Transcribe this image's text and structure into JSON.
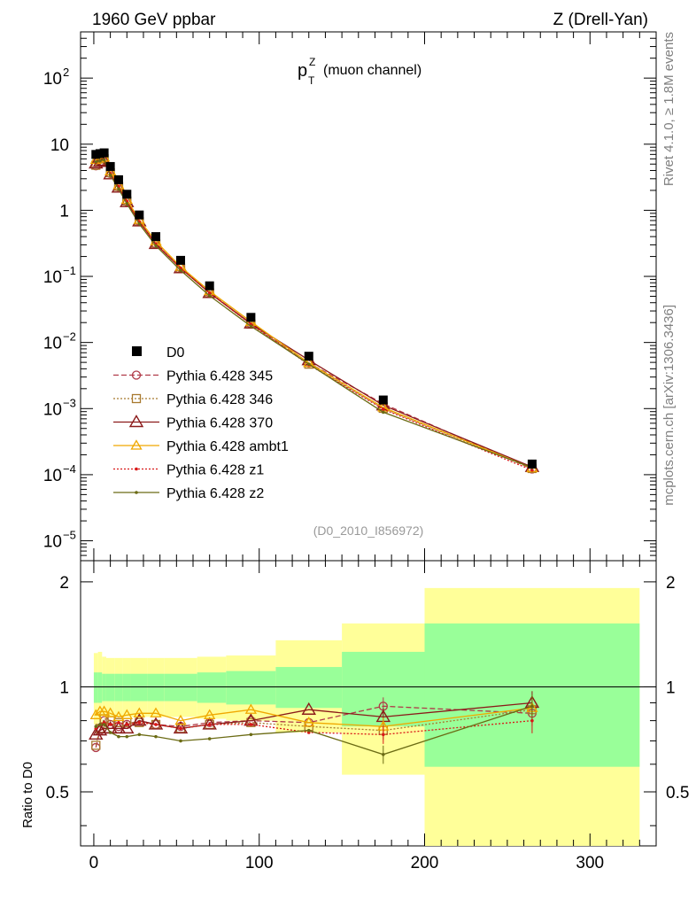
{
  "header": {
    "left": "1960 GeV ppbar",
    "right": "Z (Drell-Yan)"
  },
  "side_text": {
    "top": "Rivet 4.1.0, ≥ 1.8M events",
    "bottom": "mcplots.cern.ch [arXiv:1306.3436]"
  },
  "plot_title": {
    "base": "p",
    "sup": "Z",
    "sub": "T",
    "rest": "(muon channel)"
  },
  "analysis_id": "(D0_2010_I856972)",
  "ratio_ylabel": "Ratio to D0",
  "colors": {
    "data": "#000000",
    "p345": "#b03a48",
    "p346": "#a8792e",
    "p370": "#8b1a1a",
    "ambt1": "#f0a800",
    "z1": "#d81818",
    "z2": "#6b6b14",
    "band_inner": "#99ff99",
    "band_outer": "#ffff99"
  },
  "chart_data": [
    {
      "type": "scatter",
      "title": "p_T^Z (muon channel)",
      "yscale": "log",
      "xlim": [
        -8,
        340
      ],
      "ylim": [
        5e-06,
        500
      ],
      "yticks": [
        {
          "value": 1e-05,
          "label": "10",
          "exp": "−5"
        },
        {
          "value": 0.0001,
          "label": "10",
          "exp": "−4"
        },
        {
          "value": 0.001,
          "label": "10",
          "exp": "−3"
        },
        {
          "value": 0.01,
          "label": "10",
          "exp": "−2"
        },
        {
          "value": 0.1,
          "label": "10",
          "exp": "−1"
        },
        {
          "value": 1,
          "label": "1",
          "exp": ""
        },
        {
          "value": 10,
          "label": "10",
          "exp": ""
        },
        {
          "value": 100,
          "label": "10",
          "exp": "2"
        }
      ],
      "x": [
        1.25,
        3.75,
        6.25,
        10,
        15,
        20,
        27.5,
        37.5,
        52.5,
        70,
        95,
        130,
        175,
        265
      ],
      "data": {
        "name": "D0",
        "values": [
          7.0,
          7.2,
          7.4,
          4.6,
          2.9,
          1.75,
          0.85,
          0.4,
          0.175,
          0.072,
          0.024,
          0.0062,
          0.00135,
          0.000145
        ]
      },
      "series": [
        {
          "name": "Pythia 6.428 345",
          "key": "p345",
          "marker": "circle",
          "dash": "6,3",
          "values": [
            4.7,
            5.4,
            5.9,
            3.6,
            2.25,
            1.36,
            0.68,
            0.31,
            0.136,
            0.057,
            0.0192,
            0.0049,
            0.00118,
            0.000122
          ]
        },
        {
          "name": "Pythia 6.428 346",
          "key": "p346",
          "marker": "square",
          "dash": "2,2",
          "values": [
            4.8,
            5.5,
            6.0,
            3.7,
            2.3,
            1.38,
            0.67,
            0.31,
            0.133,
            0.056,
            0.019,
            0.0047,
            0.00101,
            0.000124
          ]
        },
        {
          "name": "Pythia 6.428 370",
          "key": "p370",
          "marker": "triangle",
          "dash": "",
          "values": [
            5.1,
            5.4,
            5.6,
            3.5,
            2.2,
            1.33,
            0.68,
            0.31,
            0.133,
            0.056,
            0.0194,
            0.0054,
            0.00112,
            0.000131
          ]
        },
        {
          "name": "Pythia 6.428 ambt1",
          "key": "ambt1",
          "marker": "triangle-small",
          "dash": "",
          "values": [
            5.8,
            6.1,
            6.3,
            3.9,
            2.4,
            1.45,
            0.72,
            0.34,
            0.14,
            0.06,
            0.0206,
            0.0049,
            0.00104,
            0.000126
          ]
        },
        {
          "name": "Pythia 6.428 z1",
          "key": "z1",
          "marker": "dot",
          "dash": "2,2",
          "values": [
            5.3,
            5.6,
            5.9,
            3.6,
            2.3,
            1.37,
            0.67,
            0.31,
            0.133,
            0.056,
            0.0188,
            0.0046,
            0.00098,
            0.000117
          ]
        },
        {
          "name": "Pythia 6.428 z2",
          "key": "z2",
          "marker": "dot",
          "dash": "",
          "values": [
            5.4,
            5.6,
            5.8,
            3.4,
            2.1,
            1.26,
            0.62,
            0.29,
            0.123,
            0.051,
            0.0176,
            0.0047,
            0.00088,
            0.000128
          ]
        }
      ]
    },
    {
      "type": "line",
      "ylabel": "Ratio to D0",
      "xlim": [
        -8,
        340
      ],
      "ylim": [
        0.35,
        2.3
      ],
      "xticks": [
        0,
        100,
        200,
        300
      ],
      "yticks": [
        0.5,
        1,
        2
      ],
      "bins": [
        {
          "lo": 0,
          "hi": 2.5,
          "inner": [
            0.9,
            1.1
          ],
          "outer": [
            0.78,
            1.25
          ]
        },
        {
          "lo": 2.5,
          "hi": 5,
          "inner": [
            0.9,
            1.1
          ],
          "outer": [
            0.79,
            1.26
          ]
        },
        {
          "lo": 5,
          "hi": 7.5,
          "inner": [
            0.91,
            1.09
          ],
          "outer": [
            0.82,
            1.22
          ]
        },
        {
          "lo": 7.5,
          "hi": 12.5,
          "inner": [
            0.91,
            1.09
          ],
          "outer": [
            0.82,
            1.21
          ]
        },
        {
          "lo": 12.5,
          "hi": 17.5,
          "inner": [
            0.91,
            1.09
          ],
          "outer": [
            0.82,
            1.21
          ]
        },
        {
          "lo": 17.5,
          "hi": 22.5,
          "inner": [
            0.91,
            1.09
          ],
          "outer": [
            0.82,
            1.21
          ]
        },
        {
          "lo": 22.5,
          "hi": 32.5,
          "inner": [
            0.91,
            1.09
          ],
          "outer": [
            0.82,
            1.21
          ]
        },
        {
          "lo": 32.5,
          "hi": 42.5,
          "inner": [
            0.91,
            1.09
          ],
          "outer": [
            0.82,
            1.21
          ]
        },
        {
          "lo": 42.5,
          "hi": 62.5,
          "inner": [
            0.91,
            1.09
          ],
          "outer": [
            0.82,
            1.21
          ]
        },
        {
          "lo": 62.5,
          "hi": 80,
          "inner": [
            0.9,
            1.1
          ],
          "outer": [
            0.81,
            1.22
          ]
        },
        {
          "lo": 80,
          "hi": 110,
          "inner": [
            0.89,
            1.11
          ],
          "outer": [
            0.8,
            1.23
          ]
        },
        {
          "lo": 110,
          "hi": 150,
          "inner": [
            0.87,
            1.14
          ],
          "outer": [
            0.74,
            1.36
          ]
        },
        {
          "lo": 150,
          "hi": 200,
          "inner": [
            0.77,
            1.26
          ],
          "outer": [
            0.56,
            1.52
          ]
        },
        {
          "lo": 200,
          "hi": 330,
          "inner": [
            0.59,
            1.52
          ],
          "outer": [
            0.33,
            1.92
          ]
        }
      ],
      "x": [
        1.25,
        3.75,
        6.25,
        10,
        15,
        20,
        27.5,
        37.5,
        52.5,
        70,
        95,
        130,
        175,
        265
      ],
      "series": [
        {
          "name": "Pythia 6.428 345",
          "key": "p345",
          "marker": "circle",
          "dash": "6,3",
          "values": [
            0.67,
            0.75,
            0.8,
            0.78,
            0.77,
            0.78,
            0.8,
            0.78,
            0.77,
            0.79,
            0.8,
            0.79,
            0.88,
            0.84
          ]
        },
        {
          "name": "Pythia 6.428 346",
          "key": "p346",
          "marker": "square",
          "dash": "2,2",
          "values": [
            0.68,
            0.76,
            0.81,
            0.8,
            0.79,
            0.79,
            0.79,
            0.78,
            0.76,
            0.78,
            0.79,
            0.77,
            0.75,
            0.86
          ]
        },
        {
          "name": "Pythia 6.428 370",
          "key": "p370",
          "marker": "triangle",
          "dash": "",
          "values": [
            0.73,
            0.75,
            0.76,
            0.76,
            0.76,
            0.76,
            0.8,
            0.78,
            0.76,
            0.78,
            0.8,
            0.86,
            0.82,
            0.9
          ]
        },
        {
          "name": "Pythia 6.428 ambt1",
          "key": "ambt1",
          "marker": "triangle-small",
          "dash": "",
          "values": [
            0.83,
            0.85,
            0.85,
            0.84,
            0.82,
            0.83,
            0.84,
            0.84,
            0.8,
            0.83,
            0.86,
            0.79,
            0.77,
            0.87
          ]
        },
        {
          "name": "Pythia 6.428 z1",
          "key": "z1",
          "marker": "dot",
          "dash": "2,2",
          "values": [
            0.76,
            0.78,
            0.79,
            0.78,
            0.79,
            0.78,
            0.79,
            0.78,
            0.76,
            0.78,
            0.78,
            0.74,
            0.73,
            0.8
          ]
        },
        {
          "name": "Pythia 6.428 z2",
          "key": "z2",
          "marker": "dot",
          "dash": "",
          "values": [
            0.77,
            0.78,
            0.78,
            0.74,
            0.72,
            0.72,
            0.73,
            0.72,
            0.7,
            0.71,
            0.73,
            0.75,
            0.64,
            0.88
          ]
        }
      ]
    }
  ]
}
